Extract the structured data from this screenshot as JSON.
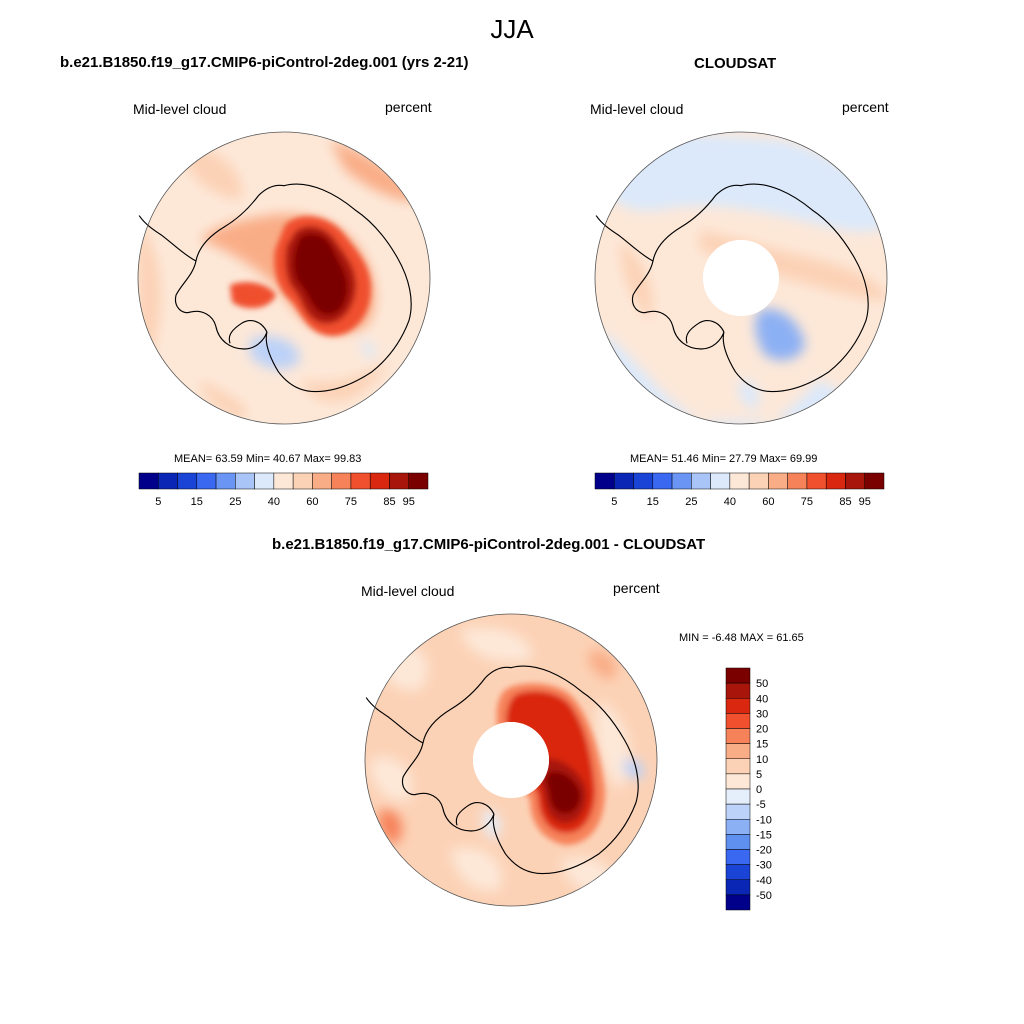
{
  "figure": {
    "season": "JJA",
    "colors": {
      "coast": "#000000",
      "border": "#555555",
      "hole": "#ffffff"
    }
  },
  "panels": [
    {
      "title": "b.e21.B1850.f19_g17.CMIP6-piControl-2deg.001 (yrs 2-21)",
      "left_label": "Mid-level cloud",
      "right_label": "percent",
      "stats": "MEAN=  63.59  Min=  40.67  Max=  99.83",
      "has_hole": false
    },
    {
      "title": "CLOUDSAT",
      "left_label": "Mid-level cloud",
      "right_label": "percent",
      "stats": "MEAN=  51.46  Min=  27.79  Max=  69.99",
      "has_hole": true
    },
    {
      "title": "b.e21.B1850.f19_g17.CMIP6-piControl-2deg.001 - CLOUDSAT",
      "left_label": "Mid-level cloud",
      "right_label": "percent",
      "stats": "MIN =  -6.48 MAX =  61.65",
      "has_hole": true
    }
  ],
  "colorbars": {
    "abs": {
      "colors": [
        "#00008b",
        "#0a26b5",
        "#1a44d6",
        "#3a68f0",
        "#6b95f5",
        "#a9c5f7",
        "#dbe9fb",
        "#fde8d8",
        "#fcd2b6",
        "#f9ad87",
        "#f6825a",
        "#f0502d",
        "#d9280f",
        "#a8150a",
        "#7a0000"
      ],
      "labels": [
        "5",
        "15",
        "25",
        "40",
        "60",
        "75",
        "85",
        "95"
      ]
    },
    "diff": {
      "colors": [
        "#7a0000",
        "#a8150a",
        "#d9280f",
        "#f0502d",
        "#f6825a",
        "#f9ad87",
        "#fcd2b6",
        "#fde8d8",
        "#e5eefb",
        "#bcd2f8",
        "#8cb0f4",
        "#6090ef",
        "#3a68f0",
        "#1a44d6",
        "#0a26b5",
        "#00008b"
      ],
      "labels": [
        "50",
        "40",
        "30",
        "20",
        "15",
        "10",
        "5",
        "0",
        "-5",
        "-10",
        "-15",
        "-20",
        "-30",
        "-40",
        "-50"
      ]
    }
  }
}
